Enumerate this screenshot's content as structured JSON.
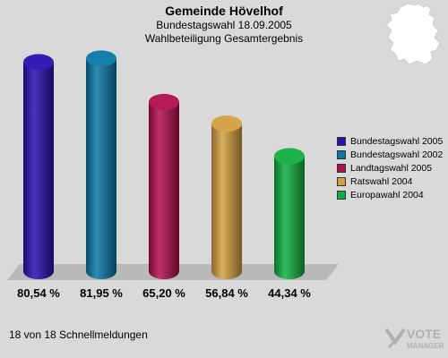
{
  "header": {
    "title": "Gemeinde Hövelhof",
    "subtitle": "Bundestagswahl 18.09.2005",
    "subtitle2": "Wahlbeteiligung Gesamtergebnis"
  },
  "footer": {
    "text": "18 von 18 Schnellmeldungen"
  },
  "logo": {
    "line1": "VOTE",
    "line2": "MANAGER"
  },
  "chart_data": {
    "type": "bar",
    "title": "Wahlbeteiligung Gesamtergebnis",
    "categories": [
      "Bundestagswahl 2005",
      "Bundestagswahl 2002",
      "Landtagswahl 2005",
      "Ratswahl 2004",
      "Europawahl 2004"
    ],
    "values": [
      80.54,
      81.95,
      65.2,
      56.84,
      44.34
    ],
    "value_labels": [
      "80,54 %",
      "81,95 %",
      "65,20 %",
      "56,84 %",
      "44,34 %"
    ],
    "colors": [
      "#2b0fb0",
      "#0a78a8",
      "#b0104a",
      "#d4a040",
      "#10b040"
    ],
    "legend": [
      "Bundestagswahl 2005",
      "Bundestagswahl 2002",
      "Landtagswahl 2005",
      "Ratswahl 2004",
      "Europawahl 2004"
    ],
    "legend_position": "right",
    "ylim": [
      0,
      100
    ],
    "grid": false
  }
}
